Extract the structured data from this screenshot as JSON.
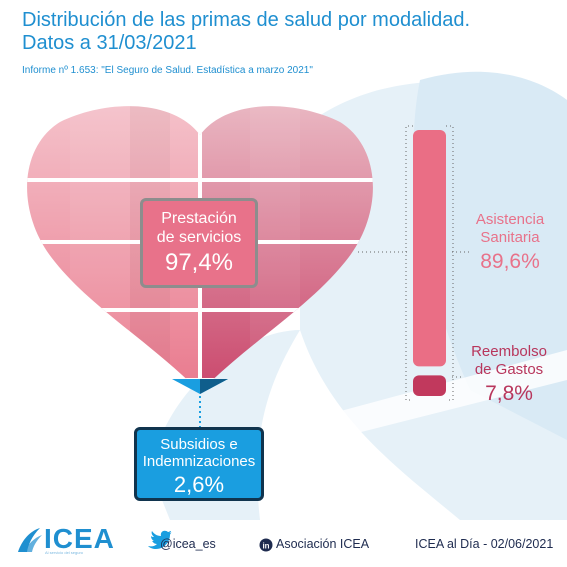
{
  "header": {
    "title_line1": "Distribución de las primas de salud por modalidad.",
    "title_line2": "Datos a 31/03/2021",
    "subtitle": "Informe nº 1.653: \"El Seguro de Salud. Estadística a marzo 2021\""
  },
  "chart_data": {
    "type": "composition",
    "title": "Distribución de las primas de salud por modalidad. Datos a 31/03/2021",
    "unit": "%",
    "segments": [
      {
        "label": "Prestación de servicios",
        "value": 97.4,
        "value_label": "97,4%",
        "color": "#e8728a",
        "breakdown": [
          {
            "label": "Asistencia Sanitaria",
            "value": 89.6,
            "value_label": "89,6%",
            "color": "#ea6e85"
          },
          {
            "label": "Reembolso de Gastos",
            "value": 7.8,
            "value_label": "7,8%",
            "color": "#c1395d"
          }
        ]
      },
      {
        "label": "Subsidios e Indemnizaciones",
        "value": 2.6,
        "value_label": "2,6%",
        "color": "#1a9ee0"
      }
    ]
  },
  "callouts": {
    "main": {
      "line1": "Prestación",
      "line2": "de servicios",
      "value": "97,4%"
    },
    "sub": {
      "line1": "Subsidios e",
      "line2": "Indemnizaciones",
      "value": "2,6%"
    },
    "asistencia": {
      "line1": "Asistencia",
      "line2": "Sanitaria",
      "value": "89,6%"
    },
    "reembolso": {
      "line1": "Reembolso",
      "line2": "de Gastos",
      "value": "7,8%"
    }
  },
  "footer": {
    "logo": "ICEA",
    "logo_tagline": "Al servicio del seguro",
    "twitter": "@icea_es",
    "linkedin": "Asociación ICEA",
    "source_date": "ICEA al Día - 02/06/2021"
  },
  "colors": {
    "title": "#1f8fd0",
    "heart_top": "#f4c3cc",
    "heart_bottom": "#e8728a",
    "heart_dark": "#c1395d",
    "bar_asistencia": "#ea6e85",
    "bar_reembolso": "#c1395d",
    "subsidios": "#1a9ee0",
    "background_shape": "#d9eaf5"
  }
}
